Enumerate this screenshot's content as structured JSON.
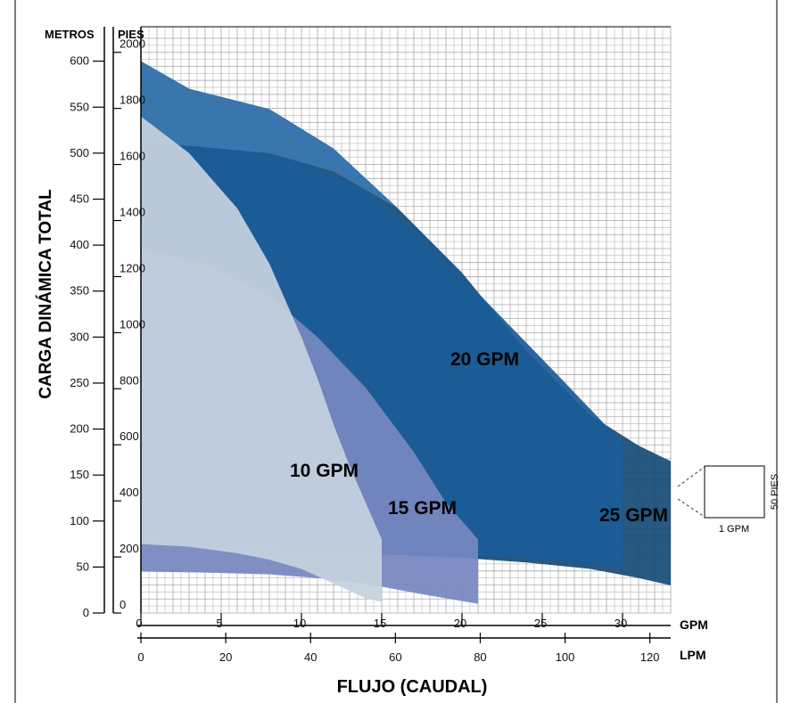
{
  "chart_data": {
    "type": "area",
    "title": "",
    "xlabel": "FLUJO (CAUDAL)",
    "ylabel": "CARGA DINÁMICA TOTAL",
    "x_unit_gpm": "GPM",
    "x_unit_lpm": "LPM",
    "y_unit_meters": "METROS",
    "y_unit_feet": "PIES",
    "xlim_gpm": [
      0,
      33
    ],
    "ylim_meters": [
      0,
      620
    ],
    "x_ticks_gpm": [
      "0",
      "5",
      "10",
      "15",
      "20",
      "25",
      "30"
    ],
    "x_ticks_lpm": [
      "0",
      "20",
      "40",
      "60",
      "80",
      "100",
      "120"
    ],
    "y_ticks_meters": [
      "0",
      "50",
      "100",
      "150",
      "200",
      "250",
      "300",
      "350",
      "400",
      "450",
      "500",
      "550",
      "600"
    ],
    "y_ticks_feet": [
      "0",
      "200",
      "400",
      "600",
      "800",
      "1000",
      "1200",
      "1400",
      "1600",
      "1800",
      "2000"
    ],
    "grid": true,
    "legend": "none",
    "series": [
      {
        "name": "25 GPM",
        "color": "#174c78",
        "x": [
          0,
          3,
          8,
          12,
          16,
          20,
          24,
          28,
          31,
          33
        ],
        "upper": [
          600,
          570,
          548,
          505,
          440,
          370,
          285,
          215,
          182,
          165
        ],
        "lower": [
          75,
          72,
          68,
          65,
          63,
          60,
          55,
          48,
          38,
          30
        ]
      },
      {
        "name": "20 GPM",
        "color": "#1b5d98",
        "x": [
          0,
          3,
          7,
          10,
          14,
          18,
          22,
          26,
          30
        ],
        "upper": [
          510,
          508,
          503,
          490,
          460,
          402,
          330,
          258,
          185
        ],
        "lower": [
          75,
          74,
          72,
          70,
          68,
          65,
          62,
          57,
          50
        ]
      },
      {
        "name": "25 GPM top band",
        "color": "#3a78b0",
        "x": [
          0,
          3,
          8,
          12,
          16,
          20
        ],
        "upper": [
          600,
          570,
          548,
          505,
          440,
          385
        ],
        "lower": [
          510,
          508,
          500,
          480,
          440,
          385
        ]
      },
      {
        "name": "15 GPM",
        "color": "#7688c0",
        "x": [
          0,
          4,
          8,
          11,
          14,
          17,
          19,
          21
        ],
        "upper": [
          395,
          380,
          345,
          300,
          245,
          175,
          120,
          80
        ],
        "lower": [
          45,
          44,
          42,
          38,
          32,
          22,
          16,
          10
        ]
      },
      {
        "name": "10 GPM",
        "color": "#c5d2df",
        "x": [
          0,
          3,
          6,
          8,
          10,
          11,
          12,
          13,
          14,
          15
        ],
        "upper": [
          540,
          500,
          440,
          380,
          300,
          255,
          205,
          160,
          120,
          80
        ],
        "lower": [
          75,
          72,
          65,
          58,
          48,
          40,
          32,
          24,
          16,
          12
        ]
      }
    ],
    "labels": [
      "10 GPM",
      "15 GPM",
      "20 GPM",
      "25 GPM"
    ]
  },
  "legend_box": {
    "x_label": "1 GPM",
    "y_label": "50 PIES"
  }
}
